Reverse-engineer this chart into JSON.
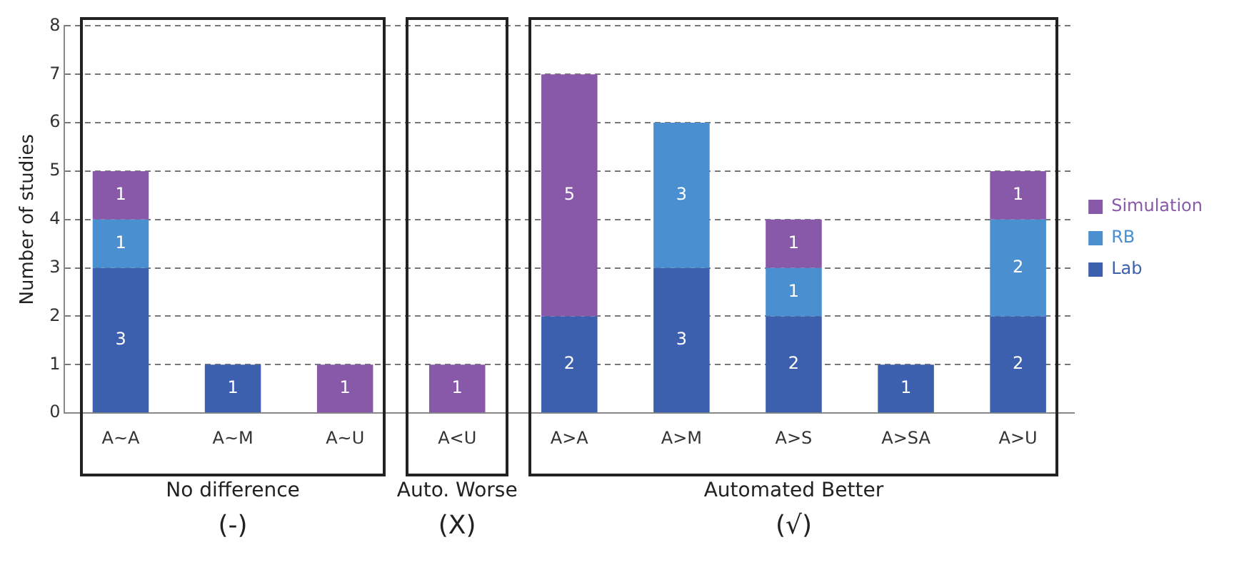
{
  "chart_data": {
    "type": "bar",
    "stacked": true,
    "ylabel": "Number of studies",
    "categories": [
      "A~A",
      "A~M",
      "A~U",
      "A<U",
      "A>A",
      "A>M",
      "A>S",
      "A>SA",
      "A>U"
    ],
    "series": [
      {
        "name": "Lab",
        "color": "#3c5fae",
        "values": [
          3,
          1,
          0,
          0,
          2,
          3,
          2,
          1,
          2
        ],
        "value_labels": [
          "3",
          "1",
          null,
          null,
          "2",
          "3",
          "2",
          "1",
          "2"
        ]
      },
      {
        "name": "RB",
        "color": "#4a8fd0",
        "values": [
          1,
          0,
          0,
          0,
          0,
          3,
          1,
          0,
          2
        ],
        "value_labels": [
          "1",
          null,
          null,
          null,
          null,
          "3",
          "1",
          null,
          "2"
        ]
      },
      {
        "name": "Simulation",
        "color": "#8859a8",
        "values": [
          1,
          0,
          1,
          1,
          5,
          0,
          1,
          0,
          1
        ],
        "value_labels": [
          "1",
          null,
          "1",
          "1",
          "5",
          null,
          "1",
          null,
          "1"
        ]
      }
    ],
    "ylim": [
      0,
      8
    ],
    "yticks": [
      0,
      1,
      2,
      3,
      4,
      5,
      6,
      7,
      8
    ],
    "grid": "y",
    "legend": "right",
    "annotations": [
      "No difference",
      "Auto. Worse",
      "Automated Better",
      "(-)",
      "(X)",
      "(√)"
    ]
  }
}
